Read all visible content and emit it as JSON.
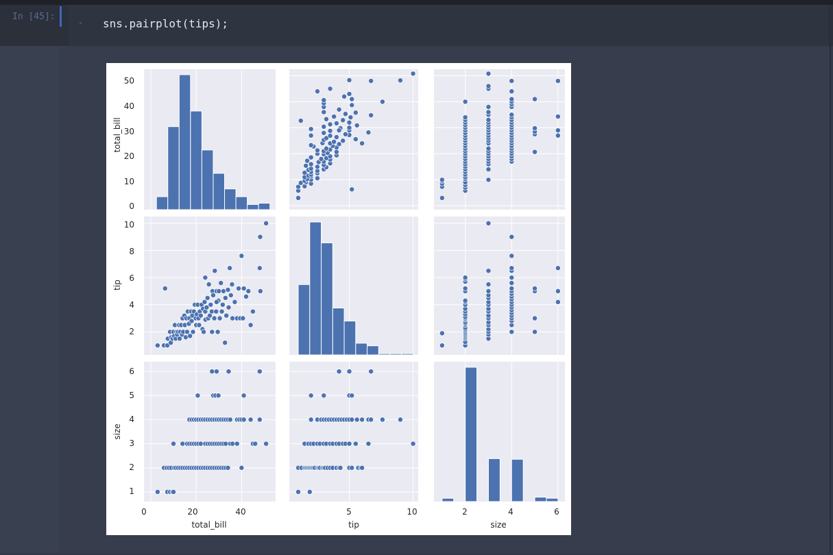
{
  "notebook": {
    "prompt": "In [45]:",
    "code": "sns.pairplot(tips);"
  },
  "colors": {
    "bar": "#4c72b0",
    "panel": "#eaeaf2",
    "grid": "#ffffff",
    "page": "#2b303b"
  },
  "chart_data": {
    "type": "scatter",
    "variables": [
      "total_bill",
      "tip",
      "size"
    ],
    "grid": true,
    "total_bill_hist": {
      "bin_centers": [
        5,
        10,
        15,
        20,
        25,
        30,
        35,
        40,
        45,
        50
      ],
      "counts": [
        5,
        32,
        52,
        38,
        23,
        14,
        8,
        5,
        2,
        2.5
      ]
    },
    "tip_hist": {
      "bin_centers": [
        1.45,
        2.35,
        3.25,
        4.15,
        5.05,
        5.95,
        6.85,
        7.75,
        8.65,
        9.55
      ],
      "counts": [
        5.4,
        10.2,
        8.6,
        3.6,
        2.6,
        0.9,
        0.7,
        0.1,
        0.1,
        0.1
      ]
    },
    "size_hist": {
      "bin_centers": [
        1.25,
        2.25,
        3.25,
        4.25,
        5.25,
        5.75
      ],
      "counts": [
        0.15,
        6.1,
        1.95,
        1.92,
        0.2,
        0.15
      ]
    },
    "points_total_bill_tip": [
      [
        3,
        1
      ],
      [
        5.8,
        1
      ],
      [
        7.3,
        1
      ],
      [
        7.5,
        1.5
      ],
      [
        8.5,
        2
      ],
      [
        8.8,
        1.2
      ],
      [
        9,
        1.6
      ],
      [
        9.6,
        1.5
      ],
      [
        10,
        2
      ],
      [
        10.3,
        1.7
      ],
      [
        10.6,
        2.5
      ],
      [
        11,
        1.5
      ],
      [
        11.3,
        2
      ],
      [
        11.6,
        1.8
      ],
      [
        12,
        2
      ],
      [
        12.5,
        2.5
      ],
      [
        12.7,
        1.5
      ],
      [
        13,
        2
      ],
      [
        13.4,
        2.5
      ],
      [
        13.8,
        1.8
      ],
      [
        14,
        3
      ],
      [
        14.3,
        2
      ],
      [
        14.8,
        3.2
      ],
      [
        15,
        2.5
      ],
      [
        15.4,
        1.6
      ],
      [
        15.7,
        3
      ],
      [
        16,
        2
      ],
      [
        16.3,
        3.5
      ],
      [
        16.8,
        2.6
      ],
      [
        17,
        3
      ],
      [
        17.3,
        1.7
      ],
      [
        17.8,
        3.5
      ],
      [
        18,
        2.8
      ],
      [
        18.3,
        3.2
      ],
      [
        18.6,
        2
      ],
      [
        19,
        3.5
      ],
      [
        19.4,
        4
      ],
      [
        19.8,
        3
      ],
      [
        20,
        2.5
      ],
      [
        20.3,
        3.3
      ],
      [
        20.7,
        4
      ],
      [
        21,
        3
      ],
      [
        21.3,
        2.5
      ],
      [
        21.6,
        3.5
      ],
      [
        22,
        3.2
      ],
      [
        22.4,
        4
      ],
      [
        22.8,
        2.2
      ],
      [
        23,
        3.7
      ],
      [
        23.3,
        2
      ],
      [
        23.7,
        4.2
      ],
      [
        24,
        3.5
      ],
      [
        24.1,
        2.9
      ],
      [
        24.6,
        3.8
      ],
      [
        25,
        4.5
      ],
      [
        25.3,
        3
      ],
      [
        25.6,
        5.5
      ],
      [
        26,
        3.2
      ],
      [
        26.4,
        4
      ],
      [
        26.9,
        3.5
      ],
      [
        27,
        2
      ],
      [
        27.2,
        5
      ],
      [
        27.5,
        4.7
      ],
      [
        28,
        3
      ],
      [
        28.2,
        6.5
      ],
      [
        28.8,
        3.5
      ],
      [
        29,
        5
      ],
      [
        29.5,
        2
      ],
      [
        29.8,
        4.3
      ],
      [
        30,
        5
      ],
      [
        30.4,
        3
      ],
      [
        30.9,
        5.6
      ],
      [
        31.3,
        3.5
      ],
      [
        31.7,
        4
      ],
      [
        32,
        5
      ],
      [
        32.7,
        1.2
      ],
      [
        32.9,
        4.5
      ],
      [
        33.3,
        3.2
      ],
      [
        34,
        5.1
      ],
      [
        34.3,
        3.8
      ],
      [
        34.8,
        6.7
      ],
      [
        35.3,
        4.7
      ],
      [
        35.8,
        5.5
      ],
      [
        36,
        3
      ],
      [
        37,
        4.2
      ],
      [
        38,
        3
      ],
      [
        38.7,
        5.2
      ],
      [
        39.4,
        3
      ],
      [
        40,
        7.6
      ],
      [
        40.6,
        3
      ],
      [
        41,
        5.2
      ],
      [
        42,
        4.6
      ],
      [
        43,
        5
      ],
      [
        44,
        2.5
      ],
      [
        45,
        3.5
      ],
      [
        48,
        6.7
      ],
      [
        48.2,
        9
      ],
      [
        48.3,
        5
      ],
      [
        50.8,
        10
      ],
      [
        24,
        6
      ],
      [
        29,
        4.2
      ],
      [
        6.3,
        5.2
      ]
    ],
    "points_total_bill_size": [
      [
        3,
        1
      ],
      [
        7.3,
        1
      ],
      [
        8.5,
        1
      ],
      [
        9.5,
        1
      ],
      [
        10,
        1
      ],
      [
        5.8,
        2
      ],
      [
        7,
        2
      ],
      [
        8,
        2
      ],
      [
        9,
        2
      ],
      [
        10.3,
        2
      ],
      [
        11,
        2
      ],
      [
        12,
        2
      ],
      [
        13,
        2
      ],
      [
        14,
        2
      ],
      [
        15,
        2
      ],
      [
        16,
        2
      ],
      [
        17,
        2
      ],
      [
        18,
        2
      ],
      [
        19,
        2
      ],
      [
        20,
        2
      ],
      [
        21,
        2
      ],
      [
        22,
        2
      ],
      [
        23,
        2
      ],
      [
        24,
        2
      ],
      [
        25,
        2
      ],
      [
        26,
        2
      ],
      [
        27,
        2
      ],
      [
        28,
        2
      ],
      [
        29,
        2
      ],
      [
        30,
        2
      ],
      [
        31,
        2
      ],
      [
        32,
        2
      ],
      [
        33,
        2
      ],
      [
        34,
        2
      ],
      [
        40,
        2
      ],
      [
        10,
        3
      ],
      [
        14,
        3
      ],
      [
        16,
        3
      ],
      [
        17,
        3
      ],
      [
        18,
        3
      ],
      [
        19,
        3
      ],
      [
        20,
        3
      ],
      [
        21,
        3
      ],
      [
        22,
        3
      ],
      [
        24,
        3
      ],
      [
        25,
        3
      ],
      [
        26,
        3
      ],
      [
        27,
        3
      ],
      [
        28,
        3
      ],
      [
        29,
        3
      ],
      [
        30,
        3
      ],
      [
        31,
        3
      ],
      [
        32,
        3
      ],
      [
        33,
        3
      ],
      [
        35,
        3
      ],
      [
        36,
        3
      ],
      [
        38,
        3
      ],
      [
        45,
        3
      ],
      [
        46,
        3
      ],
      [
        50.8,
        3
      ],
      [
        17,
        4
      ],
      [
        18,
        4
      ],
      [
        19,
        4
      ],
      [
        20,
        4
      ],
      [
        21,
        4
      ],
      [
        22,
        4
      ],
      [
        23,
        4
      ],
      [
        24,
        4
      ],
      [
        25,
        4
      ],
      [
        26,
        4
      ],
      [
        27,
        4
      ],
      [
        28,
        4
      ],
      [
        29,
        4
      ],
      [
        30,
        4
      ],
      [
        31,
        4
      ],
      [
        32,
        4
      ],
      [
        33,
        4
      ],
      [
        34,
        4
      ],
      [
        35,
        4
      ],
      [
        38,
        4
      ],
      [
        39,
        4
      ],
      [
        40,
        4
      ],
      [
        41,
        4
      ],
      [
        44,
        4
      ],
      [
        48,
        4
      ],
      [
        20.7,
        5
      ],
      [
        27.5,
        5
      ],
      [
        28.5,
        5
      ],
      [
        29.8,
        5
      ],
      [
        41,
        5
      ],
      [
        27,
        6
      ],
      [
        29,
        6
      ],
      [
        34.3,
        6
      ],
      [
        48,
        6
      ]
    ],
    "points_tip_size": [
      [
        1,
        1
      ],
      [
        1.9,
        1
      ],
      [
        1,
        2
      ],
      [
        1.25,
        2
      ],
      [
        1.5,
        2
      ],
      [
        1.6,
        2
      ],
      [
        1.7,
        2
      ],
      [
        1.8,
        2
      ],
      [
        1.9,
        2
      ],
      [
        2,
        2
      ],
      [
        2.1,
        2
      ],
      [
        2.2,
        2
      ],
      [
        2.3,
        2
      ],
      [
        2.5,
        2
      ],
      [
        2.6,
        2
      ],
      [
        2.7,
        2
      ],
      [
        2.9,
        2
      ],
      [
        3,
        2
      ],
      [
        3.1,
        2
      ],
      [
        3.3,
        2
      ],
      [
        3.5,
        2
      ],
      [
        3.7,
        2
      ],
      [
        4,
        2
      ],
      [
        4.2,
        2
      ],
      [
        4.3,
        2
      ],
      [
        5,
        2
      ],
      [
        5.2,
        2
      ],
      [
        5.7,
        2
      ],
      [
        5.9,
        2
      ],
      [
        6,
        2
      ],
      [
        1.5,
        3
      ],
      [
        1.8,
        3
      ],
      [
        2,
        3
      ],
      [
        2.2,
        3
      ],
      [
        2.5,
        3
      ],
      [
        2.7,
        3
      ],
      [
        3,
        3
      ],
      [
        3.2,
        3
      ],
      [
        3.5,
        3
      ],
      [
        3.7,
        3
      ],
      [
        4,
        3
      ],
      [
        4.2,
        3
      ],
      [
        4.5,
        3
      ],
      [
        4.7,
        3
      ],
      [
        5,
        3
      ],
      [
        5.5,
        3
      ],
      [
        6.5,
        3
      ],
      [
        10,
        3
      ],
      [
        2,
        4
      ],
      [
        2.5,
        4
      ],
      [
        2.8,
        4
      ],
      [
        3,
        4
      ],
      [
        3.2,
        4
      ],
      [
        3.4,
        4
      ],
      [
        3.6,
        4
      ],
      [
        3.8,
        4
      ],
      [
        4,
        4
      ],
      [
        4.2,
        4
      ],
      [
        4.4,
        4
      ],
      [
        4.6,
        4
      ],
      [
        4.8,
        4
      ],
      [
        5,
        4
      ],
      [
        5.2,
        4
      ],
      [
        5.6,
        4
      ],
      [
        6,
        4
      ],
      [
        6.5,
        4
      ],
      [
        6.7,
        4
      ],
      [
        7.6,
        4
      ],
      [
        9,
        4
      ],
      [
        2,
        5
      ],
      [
        3,
        5
      ],
      [
        5,
        5
      ],
      [
        5.2,
        5
      ],
      [
        4.2,
        6
      ],
      [
        5,
        6
      ],
      [
        6.7,
        6
      ]
    ],
    "x_axes": [
      {
        "label": "total_bill",
        "ticks": [
          "0",
          "20",
          "40"
        ]
      },
      {
        "label": "tip",
        "ticks": [
          "5",
          "10"
        ]
      },
      {
        "label": "size",
        "ticks": [
          "2",
          "4",
          "6"
        ]
      }
    ],
    "y_axes": [
      {
        "label": "total_bill",
        "ticks": [
          "0",
          "10",
          "20",
          "30",
          "40",
          "50"
        ]
      },
      {
        "label": "tip",
        "ticks": [
          "2",
          "4",
          "6",
          "8",
          "10"
        ]
      },
      {
        "label": "size",
        "ticks": [
          "1",
          "2",
          "3",
          "4",
          "5",
          "6"
        ]
      }
    ]
  }
}
